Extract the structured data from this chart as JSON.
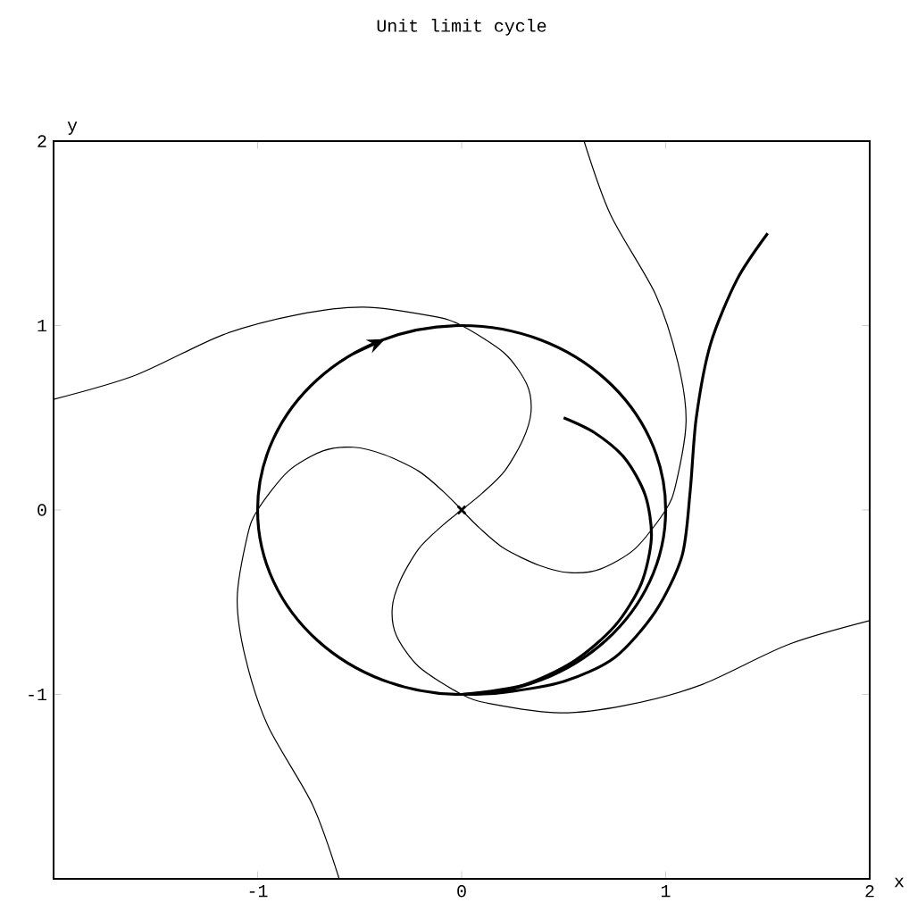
{
  "chart_data": {
    "type": "line",
    "title": "Unit limit cycle",
    "xlabel": "x",
    "ylabel": "y",
    "xlim": [
      -2,
      2
    ],
    "ylim": [
      -2,
      2
    ],
    "xticks": [
      -1,
      0,
      1,
      2
    ],
    "yticks": [
      -1,
      0,
      1,
      2
    ],
    "series": [
      {
        "color": "#000000",
        "x": [
          1.5,
          1.35,
          1.22,
          1.15,
          1.12,
          1.08,
          0.95,
          0.75,
          0.5,
          0.2,
          0
        ],
        "values": [
          1.5,
          1.25,
          0.9,
          0.5,
          0.1,
          -0.25,
          -0.55,
          -0.8,
          -0.93,
          -0.99,
          -1
        ]
      },
      {
        "color": "#000000",
        "x": [
          0.5,
          0.65,
          0.8,
          0.9,
          0.93,
          0.88,
          0.75,
          0.55,
          0.3,
          0
        ],
        "values": [
          0.5,
          0.42,
          0.28,
          0.08,
          -0.15,
          -0.4,
          -0.63,
          -0.82,
          -0.95,
          -1
        ]
      },
      {
        "color": "#000000",
        "x": [
          -2,
          -1.6,
          -1.17,
          -0.8,
          -0.48,
          -0.14,
          0,
          0.21,
          0.32,
          0.34,
          0.3,
          0.21,
          0.1,
          0
        ],
        "values": [
          0.6,
          0.73,
          0.95,
          1.06,
          1.1,
          1.05,
          1,
          0.85,
          0.68,
          0.53,
          0.38,
          0.21,
          0.09,
          0
        ]
      },
      {
        "color": "#000000",
        "x": [
          0.6,
          0.73,
          0.95,
          1.06,
          1.1,
          1.05,
          1,
          0.85,
          0.68,
          0.53,
          0.38,
          0.21,
          0.09,
          0
        ],
        "values": [
          2,
          1.6,
          1.17,
          0.8,
          0.48,
          0.14,
          0,
          -0.21,
          -0.32,
          -0.34,
          -0.3,
          -0.21,
          -0.1,
          0
        ]
      },
      {
        "color": "#000000",
        "x": [
          2,
          1.6,
          1.17,
          0.8,
          0.48,
          0.14,
          0,
          -0.21,
          -0.32,
          -0.34,
          -0.3,
          -0.21,
          -0.1,
          0
        ],
        "values": [
          -0.6,
          -0.73,
          -0.95,
          -1.06,
          -1.1,
          -1.05,
          -1,
          -0.85,
          -0.68,
          -0.53,
          -0.38,
          -0.21,
          -0.09,
          0
        ]
      },
      {
        "color": "#000000",
        "x": [
          -0.6,
          -0.73,
          -0.95,
          -1.06,
          -1.1,
          -1.05,
          -1,
          -0.85,
          -0.68,
          -0.53,
          -0.38,
          -0.21,
          -0.09,
          0
        ],
        "values": [
          -2,
          -1.6,
          -1.17,
          -0.8,
          -0.48,
          -0.14,
          0,
          0.21,
          0.32,
          0.34,
          0.3,
          0.21,
          0.1,
          0
        ]
      },
      {
        "type": "scatter",
        "marker": "cross",
        "color": "#000000",
        "x": [
          0
        ],
        "values": [
          0
        ]
      }
    ]
  }
}
